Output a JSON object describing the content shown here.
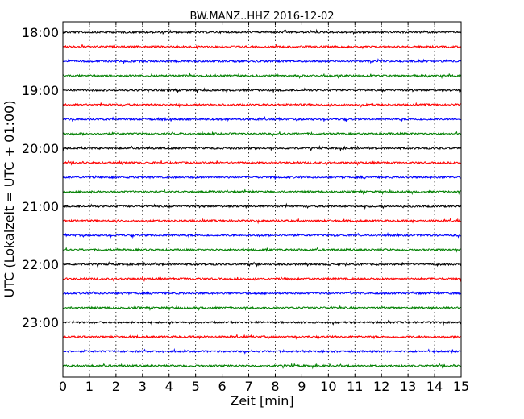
{
  "chart_data": {
    "type": "line",
    "title": "BW.MANZ..HHZ 2016-12-02",
    "xlabel": "Zeit  [min]",
    "ylabel": "UTC (Lokalzeit = UTC + 01:00)",
    "xlim": [
      0,
      15
    ],
    "x_ticks": [
      "0",
      "1",
      "2",
      "3",
      "4",
      "5",
      "6",
      "7",
      "8",
      "9",
      "10",
      "11",
      "12",
      "13",
      "14",
      "15"
    ],
    "y_ticks": [
      "18:00",
      "19:00",
      "20:00",
      "21:00",
      "22:00",
      "23:00"
    ],
    "trace_colors": [
      "#000000",
      "#ff0000",
      "#0000ff",
      "#008000"
    ],
    "trace_start_times": [
      "18:00",
      "18:15",
      "18:30",
      "18:45",
      "19:00",
      "19:15",
      "19:30",
      "19:45",
      "20:00",
      "20:15",
      "20:30",
      "20:45",
      "21:00",
      "21:15",
      "21:30",
      "21:45",
      "22:00",
      "22:15",
      "22:30",
      "22:45",
      "23:00",
      "23:15",
      "23:30",
      "23:45"
    ],
    "grid": "vertical-dotted"
  }
}
